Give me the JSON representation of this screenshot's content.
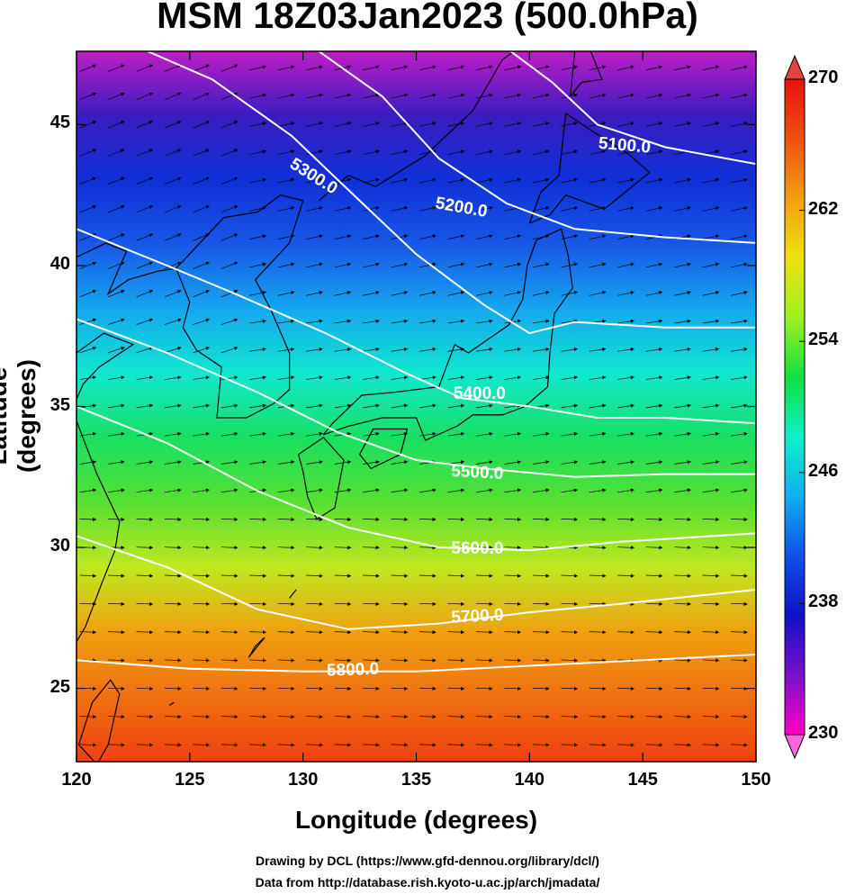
{
  "title": "MSM 18Z03Jan2023 (500.0hPa)",
  "xlabel": "Longitude (degrees)",
  "ylabel": "Latitude  (degrees)",
  "credit_line1": "Drawing by DCL (https://www.gfd-dennou.org/library/dcl/)",
  "credit_line2": "Data from http://database.rish.kyoto-u.ac.jp/arch/jmadata/",
  "map": {
    "lon_range": [
      120,
      150
    ],
    "lat_range": [
      22.4,
      47.6
    ],
    "x_ticks": [
      "120",
      "125",
      "130",
      "135",
      "140",
      "145",
      "150"
    ],
    "y_ticks": [
      "25",
      "30",
      "35",
      "40",
      "45"
    ],
    "shading": "temperature",
    "colorbar": {
      "range": [
        230,
        270
      ],
      "tick_labels": [
        "230",
        "238",
        "246",
        "254",
        "262",
        "270"
      ],
      "colors": [
        "#ff00c8",
        "#7a10c8",
        "#1010c8",
        "#1050e8",
        "#10b0f0",
        "#10f0c8",
        "#10e040",
        "#a0f020",
        "#f0e010",
        "#f0a010",
        "#f05010",
        "#e81010"
      ]
    },
    "contours": [
      {
        "label": "5100.0"
      },
      {
        "label": "5200.0"
      },
      {
        "label": "5300.0"
      },
      {
        "label": "5400.0"
      },
      {
        "label": "5500.0"
      },
      {
        "label": "5600.0"
      },
      {
        "label": "5700.0"
      },
      {
        "label": "5800.0"
      }
    ],
    "vectors": "wind"
  }
}
